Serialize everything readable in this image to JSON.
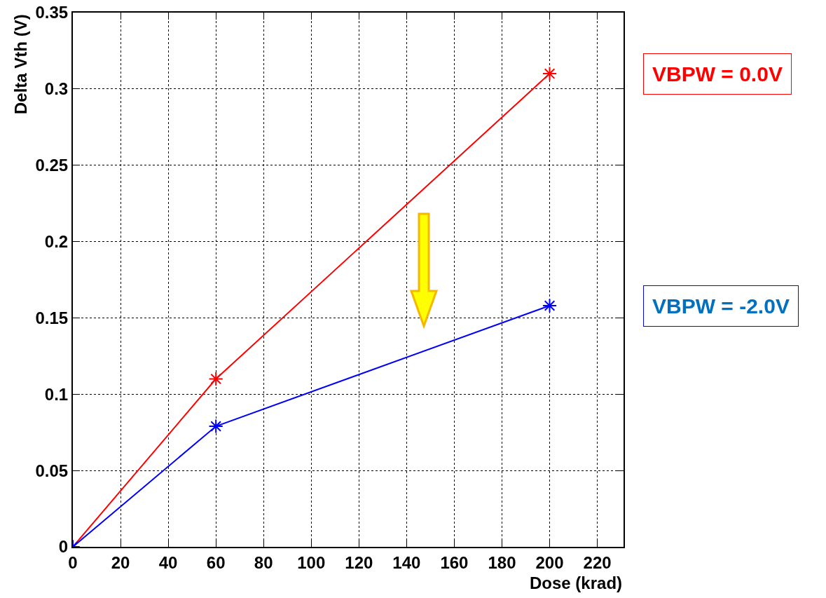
{
  "chart_data": {
    "type": "line",
    "xlabel": "Dose (krad)",
    "ylabel": "Delta Vth (V)",
    "x": [
      0,
      60,
      200
    ],
    "series": [
      {
        "name": "VBPW = 0.0V",
        "color": "#ff0000",
        "values": [
          0,
          0.11,
          0.31
        ]
      },
      {
        "name": "VBPW = -2.0V",
        "color": "#0000ff",
        "values": [
          0,
          0.079,
          0.158
        ]
      }
    ],
    "xlim": [
      0,
      231
    ],
    "xticks": [
      0,
      20,
      40,
      60,
      80,
      100,
      120,
      140,
      160,
      180,
      200,
      220
    ],
    "ylim": [
      0,
      0.35
    ],
    "yticks": [
      0,
      0.05,
      0.1,
      0.15,
      0.2,
      0.25,
      0.3,
      0.35
    ],
    "grid": true,
    "legend": false,
    "marker": "cross",
    "line_style": "solid"
  }
}
